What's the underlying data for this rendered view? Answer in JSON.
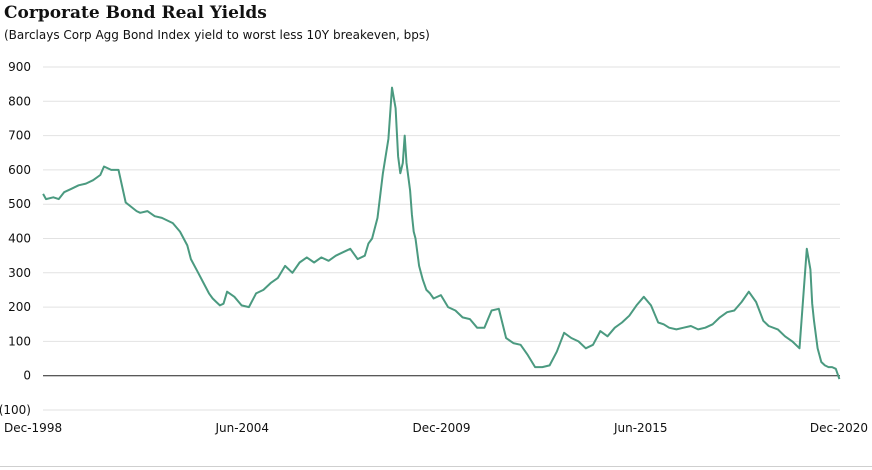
{
  "chart_data": {
    "type": "line",
    "title": "Corporate Bond Real Yields",
    "subtitle": "(Barclays Corp Agg Bond Index yield to worst less 10Y breakeven, bps)",
    "xlabel": "",
    "ylabel": "",
    "ylim": [
      -100,
      900
    ],
    "xlim": [
      1998.917,
      2020.917
    ],
    "grid": true,
    "legend": "none",
    "y_ticks": [
      {
        "value": 900,
        "label": "900"
      },
      {
        "value": 800,
        "label": "800"
      },
      {
        "value": 700,
        "label": "700"
      },
      {
        "value": 600,
        "label": "600"
      },
      {
        "value": 500,
        "label": "500"
      },
      {
        "value": 400,
        "label": "400"
      },
      {
        "value": 300,
        "label": "300"
      },
      {
        "value": 200,
        "label": "200"
      },
      {
        "value": 100,
        "label": "100"
      },
      {
        "value": 0,
        "label": "0"
      },
      {
        "value": -100,
        "label": "(100)"
      }
    ],
    "x_ticks": [
      {
        "value": 1998.917,
        "label": "Dec-1998"
      },
      {
        "value": 2004.417,
        "label": "Jun-2004"
      },
      {
        "value": 2009.917,
        "label": "Dec-2009"
      },
      {
        "value": 2015.417,
        "label": "Jun-2015"
      },
      {
        "value": 2020.917,
        "label": "Dec-2020"
      }
    ],
    "color": "#4b9a80",
    "series": [
      {
        "x": [
          1998.92,
          1999.0,
          1999.2,
          1999.35,
          1999.5,
          1999.7,
          1999.9,
          2000.1,
          2000.3,
          2000.5,
          2000.6,
          2000.8,
          2001.0,
          2001.2,
          2001.5,
          2001.6,
          2001.8,
          2002.0,
          2002.2,
          2002.5,
          2002.7,
          2002.9,
          2003.0,
          2003.2,
          2003.35,
          2003.5,
          2003.6,
          2003.7,
          2003.8,
          2003.9,
          2004.0,
          2004.2,
          2004.4,
          2004.6,
          2004.8,
          2005.0,
          2005.2,
          2005.4,
          2005.6,
          2005.8,
          2006.0,
          2006.2,
          2006.4,
          2006.6,
          2006.8,
          2007.0,
          2007.2,
          2007.4,
          2007.6,
          2007.8,
          2007.9,
          2008.0,
          2008.15,
          2008.3,
          2008.45,
          2008.55,
          2008.65,
          2008.72,
          2008.78,
          2008.85,
          2008.9,
          2008.95,
          2009.0,
          2009.05,
          2009.1,
          2009.15,
          2009.2,
          2009.3,
          2009.4,
          2009.5,
          2009.6,
          2009.7,
          2009.9,
          2010.1,
          2010.3,
          2010.5,
          2010.7,
          2010.9,
          2011.1,
          2011.3,
          2011.5,
          2011.7,
          2011.9,
          2012.1,
          2012.3,
          2012.5,
          2012.7,
          2012.9,
          2013.1,
          2013.3,
          2013.5,
          2013.7,
          2013.9,
          2014.1,
          2014.3,
          2014.5,
          2014.7,
          2014.9,
          2015.1,
          2015.3,
          2015.5,
          2015.7,
          2015.9,
          2016.05,
          2016.2,
          2016.4,
          2016.6,
          2016.8,
          2017.0,
          2017.2,
          2017.4,
          2017.6,
          2017.8,
          2018.0,
          2018.2,
          2018.4,
          2018.6,
          2018.8,
          2018.95,
          2019.2,
          2019.4,
          2019.6,
          2019.8,
          2020.0,
          2020.1,
          2020.15,
          2020.2,
          2020.3,
          2020.4,
          2020.5,
          2020.6,
          2020.7,
          2020.8,
          2020.9
        ],
        "values": [
          530,
          515,
          520,
          515,
          535,
          545,
          555,
          560,
          570,
          585,
          610,
          600,
          600,
          505,
          480,
          475,
          480,
          465,
          460,
          445,
          420,
          380,
          340,
          300,
          270,
          240,
          225,
          215,
          205,
          210,
          245,
          230,
          205,
          200,
          240,
          250,
          270,
          285,
          320,
          300,
          330,
          345,
          330,
          345,
          335,
          350,
          360,
          370,
          340,
          350,
          385,
          400,
          460,
          590,
          690,
          840,
          780,
          640,
          590,
          620,
          700,
          620,
          580,
          540,
          470,
          420,
          400,
          320,
          280,
          250,
          240,
          225,
          235,
          200,
          190,
          170,
          165,
          140,
          140,
          190,
          195,
          110,
          95,
          90,
          60,
          25,
          25,
          30,
          70,
          125,
          110,
          100,
          80,
          90,
          130,
          115,
          140,
          155,
          175,
          205,
          230,
          205,
          155,
          150,
          140,
          135,
          140,
          145,
          135,
          140,
          150,
          170,
          185,
          190,
          215,
          245,
          215,
          160,
          145,
          135,
          115,
          100,
          80,
          370,
          310,
          210,
          160,
          80,
          40,
          30,
          25,
          25,
          20,
          -10
        ]
      }
    ]
  }
}
